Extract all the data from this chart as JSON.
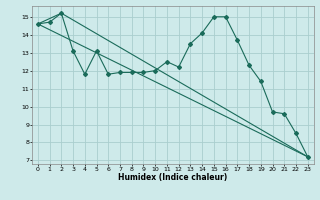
{
  "xlabel": "Humidex (Indice chaleur)",
  "xlim": [
    -0.5,
    23.5
  ],
  "ylim": [
    6.8,
    15.6
  ],
  "bg_color": "#ceeaea",
  "grid_color": "#aacece",
  "line_color": "#1a6b5a",
  "line1_x": [
    0,
    1,
    2,
    3,
    4,
    5,
    6,
    7,
    8,
    9,
    10,
    11,
    12,
    13,
    14,
    15,
    16,
    17,
    18,
    19,
    20,
    21,
    22,
    23
  ],
  "line1_y": [
    14.6,
    14.7,
    15.2,
    13.1,
    11.8,
    13.1,
    11.8,
    11.9,
    11.9,
    11.9,
    12.0,
    12.5,
    12.2,
    13.5,
    14.1,
    15.0,
    15.0,
    13.7,
    12.3,
    11.4,
    9.7,
    9.6,
    8.5,
    7.2
  ],
  "line2_x": [
    0,
    23
  ],
  "line2_y": [
    14.6,
    7.2
  ],
  "line3_x": [
    0,
    2,
    23
  ],
  "line3_y": [
    14.6,
    15.2,
    7.2
  ],
  "xticks": [
    0,
    1,
    2,
    3,
    4,
    5,
    6,
    7,
    8,
    9,
    10,
    11,
    12,
    13,
    14,
    15,
    16,
    17,
    18,
    19,
    20,
    21,
    22,
    23
  ],
  "yticks": [
    7,
    8,
    9,
    10,
    11,
    12,
    13,
    14,
    15
  ]
}
